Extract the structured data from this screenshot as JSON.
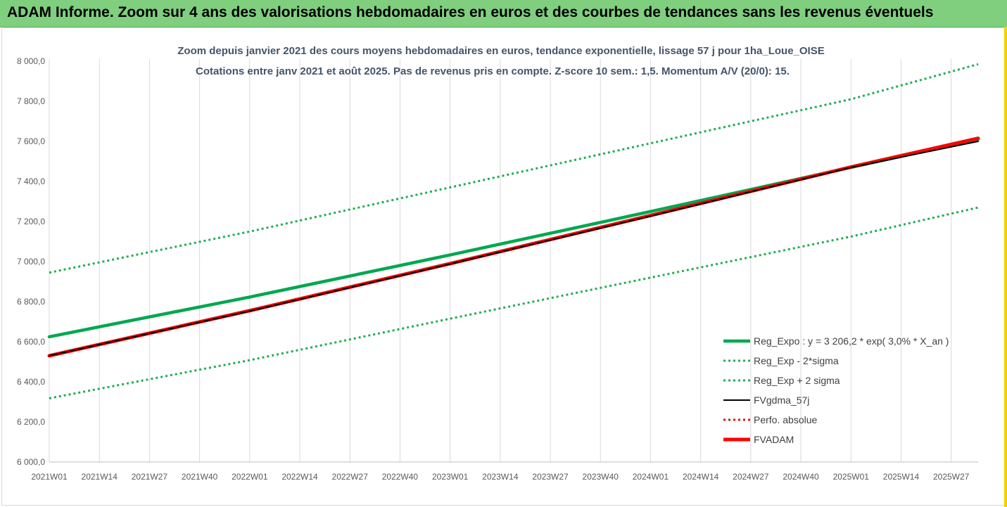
{
  "header": {
    "title": "ADAM Informe. Zoom sur 4 ans des valorisations hebdomadaires en euros et des courbes de tendances sans les revenus éventuels"
  },
  "colors": {
    "header_bg": "#7fcf7f",
    "trend": "#00a84f",
    "sigma": "#1fae52",
    "fvgdma": "#000000",
    "perfo": "#e01010",
    "fvadam": "#ff0000",
    "accent": "#f5d000"
  },
  "chart_data": {
    "type": "line",
    "title": "Zoom depuis janvier 2021 des cours moyens hebdomadaires en euros, tendance exponentielle, lissage 57 j pour 1ha_Loue_OISE",
    "subtitle": "Cotations entre janv 2021 et août 2025. Pas de revenus pris en compte. Z-score 10 sem.: 1,5. Momentum A/V (20/0): 15.",
    "xlabel": "",
    "ylabel": "",
    "x_ticks": [
      "2021W01",
      "2021W14",
      "2021W27",
      "2021W40",
      "2022W01",
      "2022W14",
      "2022W27",
      "2022W40",
      "2023W01",
      "2023W14",
      "2023W27",
      "2023W40",
      "2024W01",
      "2024W14",
      "2024W27",
      "2024W40",
      "2025W01",
      "2025W14",
      "2025W27"
    ],
    "x_range": [
      "2021W01",
      "2025W34"
    ],
    "y_ticks": [
      "6 000,0",
      "6 200,0",
      "6 400,0",
      "6 600,0",
      "6 800,0",
      "7 000,0",
      "7 200,0",
      "7 400,0",
      "7 600,0",
      "7 800,0",
      "8 000,0"
    ],
    "ylim": [
      6000,
      8000
    ],
    "grid": "vertical",
    "legend_position": "bottom-right",
    "x": [
      "2021W01",
      "2022W01",
      "2023W01",
      "2024W01",
      "2025W01",
      "2025W34"
    ],
    "series": [
      {
        "name": "Reg_Expo : y = 3 206,2 * exp( 3,0% *  X_an )",
        "style": "solid-thick",
        "color": "#00a84f",
        "values": [
          6625,
          6823,
          7033,
          7250,
          7470,
          7610
        ]
      },
      {
        "name": "Reg_Exp - 2*sigma",
        "style": "dotted",
        "color": "#1fae52",
        "values": [
          6318,
          6508,
          6715,
          6920,
          7125,
          7270
        ]
      },
      {
        "name": "Reg_Exp + 2 sigma",
        "style": "dotted",
        "color": "#1fae52",
        "values": [
          6945,
          7150,
          7370,
          7590,
          7810,
          7985
        ]
      },
      {
        "name": "FVgdma_57j",
        "style": "solid",
        "color": "#000000",
        "values": [
          6530,
          6753,
          6988,
          7227,
          7470,
          7600
        ]
      },
      {
        "name": "Perfo. absolue",
        "style": "dotted",
        "color": "#e01010",
        "values": [
          6530,
          6755,
          6990,
          7230,
          7472,
          7615
        ]
      },
      {
        "name": "FVADAM",
        "style": "solid-thick",
        "color": "#ff0000",
        "values": [
          6530,
          6755,
          6990,
          7230,
          7472,
          7615
        ]
      }
    ]
  }
}
